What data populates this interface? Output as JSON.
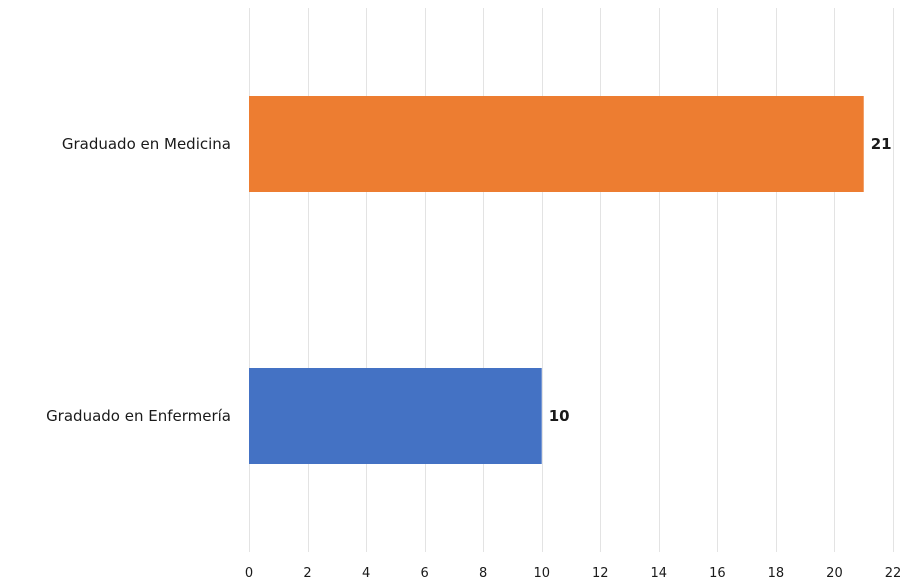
{
  "chart_data": {
    "type": "bar",
    "orientation": "horizontal",
    "title": "",
    "xlabel": "",
    "ylabel": "",
    "categories": [
      "Graduado en Medicina",
      "Graduado en Enfermería"
    ],
    "values": [
      21,
      10
    ],
    "data_labels": [
      "21",
      "10"
    ],
    "colors": [
      "#ED7D31",
      "#4472C4"
    ],
    "xlim": [
      0,
      22
    ],
    "x_ticks": [
      0,
      2,
      4,
      6,
      8,
      10,
      12,
      14,
      16,
      18,
      20,
      22
    ],
    "grid": true,
    "legend": "none"
  }
}
